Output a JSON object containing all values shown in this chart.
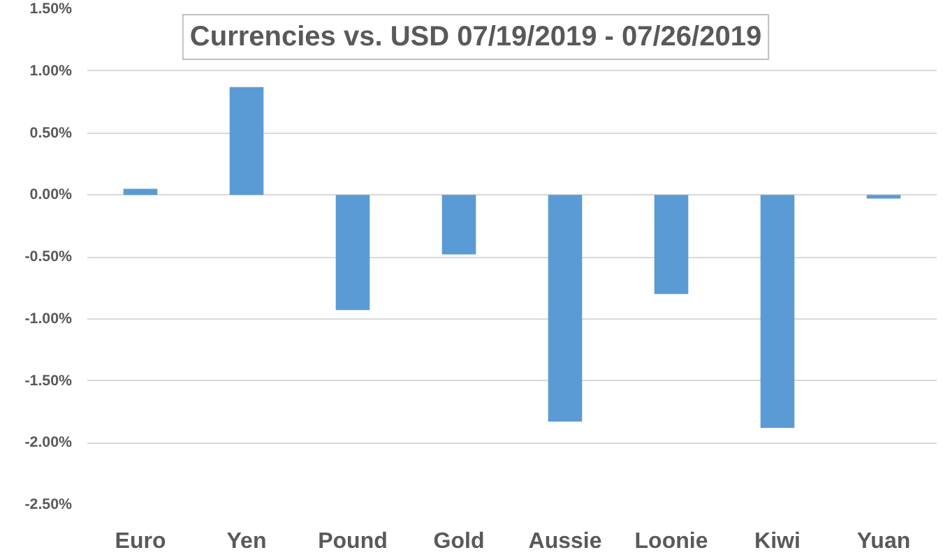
{
  "chart_data": {
    "type": "bar",
    "title": "Currencies vs. USD 07/19/2019 - 07/26/2019",
    "categories": [
      "Euro",
      "Yen",
      "Pound",
      "Gold",
      "Aussie",
      "Loonie",
      "Kiwi",
      "Yuan"
    ],
    "values": [
      0.05,
      0.87,
      -0.93,
      -0.48,
      -1.83,
      -0.8,
      -1.88,
      -0.03
    ],
    "color": "#5b9bd5",
    "ylim": [
      -2.5,
      1.5
    ],
    "yticks": [
      {
        "value": -2.5,
        "label": "-2.50%"
      },
      {
        "value": -2.0,
        "label": "-2.00%"
      },
      {
        "value": -1.5,
        "label": "-1.50%"
      },
      {
        "value": -1.0,
        "label": "-1.00%"
      },
      {
        "value": -0.5,
        "label": "-0.50%"
      },
      {
        "value": 0,
        "label": "0.00%"
      },
      {
        "value": 0.5,
        "label": "0.50%"
      },
      {
        "value": 1.0,
        "label": "1.00%"
      },
      {
        "value": 1.5,
        "label": "1.50%"
      }
    ],
    "grid": "y"
  }
}
